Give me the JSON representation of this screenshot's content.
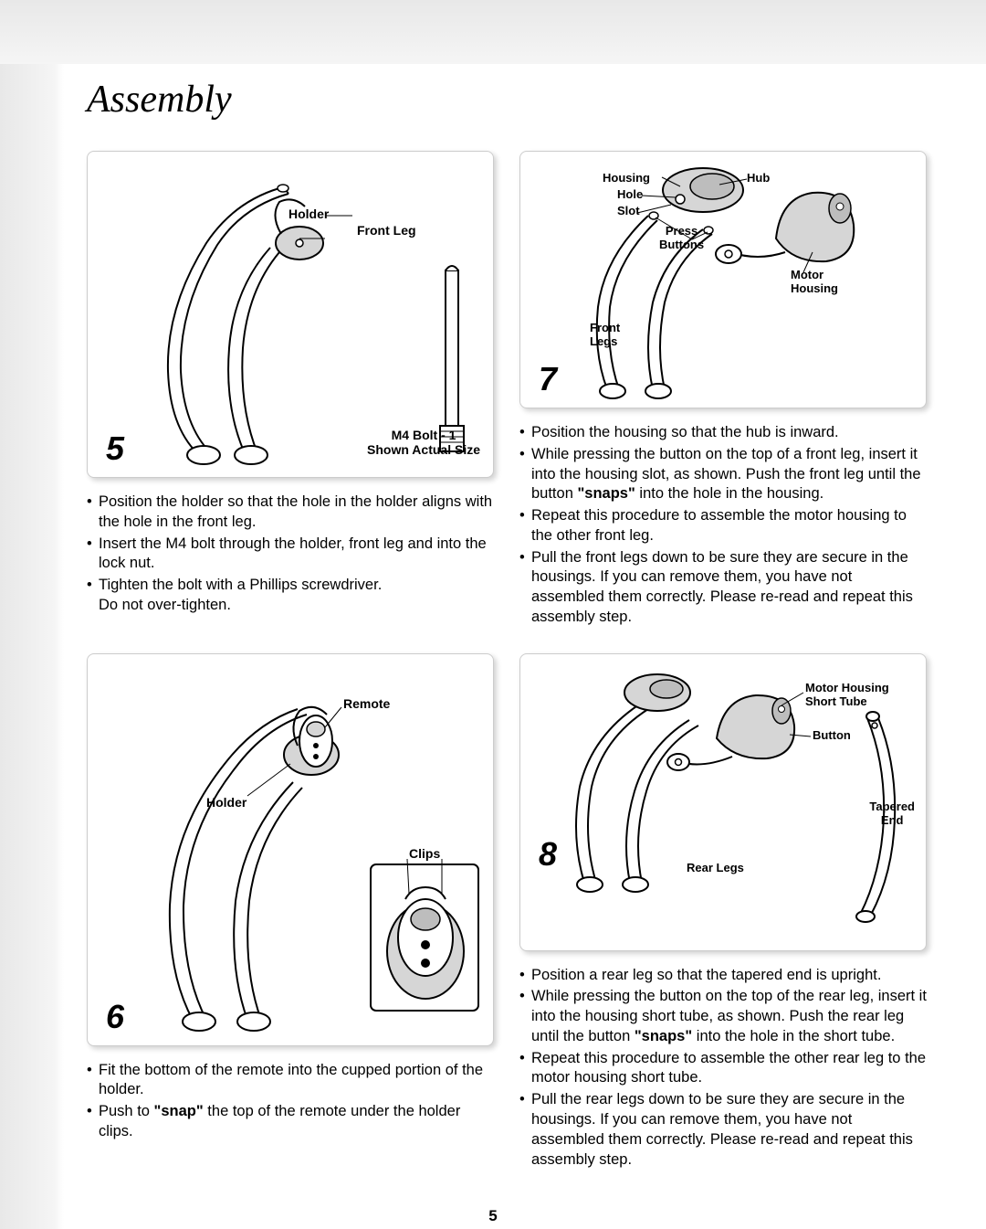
{
  "page_title": "Assembly",
  "page_number": "5",
  "colors": {
    "page_bg": "#ffffff",
    "band_light": "#f5f5f5",
    "band_dark": "#e8e8e8",
    "text": "#000000",
    "panel_border": "#cccccc",
    "diagram_fill": "#d6d6d6",
    "diagram_fill_dark": "#bdbdbd",
    "line": "#000000"
  },
  "panels": {
    "p5": {
      "number": "5",
      "labels": {
        "holder": "Holder",
        "front_leg": "Front Leg",
        "bolt": "M4 Bolt - 1",
        "bolt2": "Shown Actual Size"
      },
      "bullets": [
        "Position the holder so that the hole in the holder aligns with the hole in the front leg.",
        "Insert the M4 bolt through the holder, front leg and into the lock nut.",
        "Tighten the bolt with a Phillips screwdriver.<br>Do not over-tighten."
      ]
    },
    "p6": {
      "number": "6",
      "labels": {
        "remote": "Remote",
        "holder": "Holder",
        "clips": "Clips"
      },
      "bullets": [
        "Fit the bottom of the remote into the cupped portion of the holder.",
        "Push to <span class=\"bold\">\"snap\"</span> the top of the remote under the holder clips."
      ]
    },
    "p7": {
      "number": "7",
      "labels": {
        "housing": "Housing",
        "hub": "Hub",
        "hole": "Hole",
        "slot": "Slot",
        "press": "Press",
        "buttons": "Buttons",
        "motor": "Motor",
        "mhousing": "Housing",
        "front": "Front",
        "legs": "Legs"
      },
      "bullets": [
        "Position the housing so that the hub is inward.",
        "While pressing the button on the top of a front leg, insert it into the housing slot, as shown. Push the front leg until the button <span class=\"bold\">\"snaps\"</span> into the hole in the housing.",
        "Repeat this procedure to assemble the motor housing to the other front leg.",
        "Pull the front legs down to be sure they are secure in the housings. If you can remove them, you have not assembled them correctly. Please re-read and repeat this assembly step."
      ]
    },
    "p8": {
      "number": "8",
      "labels": {
        "motor_housing": "Motor Housing",
        "short_tube": "Short Tube",
        "button": "Button",
        "tapered": "Tapered",
        "end": "End",
        "rear_legs": "Rear Legs"
      },
      "bullets": [
        "Position a rear leg so that the tapered end is upright.",
        "While pressing the button on the top of the rear leg, insert it into the housing short tube, as shown. Push the rear leg until the button <span class=\"bold\">\"snaps\"</span> into the hole in the short tube.",
        "Repeat this procedure to assemble the other rear leg to the motor housing short tube.",
        "Pull the rear legs down to be sure they are secure in the housings. If you can remove them, you have not assembled them correctly. Please re-read and repeat this assembly step."
      ]
    }
  }
}
